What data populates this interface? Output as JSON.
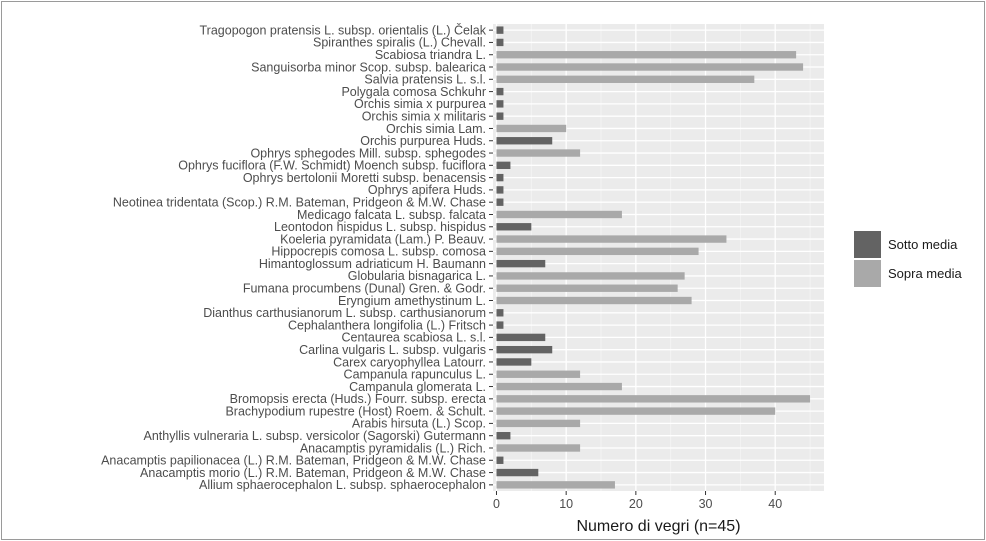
{
  "chart_data": {
    "type": "bar",
    "orientation": "horizontal",
    "xlabel": "Numero di vegri (n=45)",
    "ylabel": "",
    "xlim": [
      -0.5,
      47
    ],
    "xticks": [
      0,
      10,
      20,
      30,
      40
    ],
    "grid": true,
    "legend_position": "right",
    "colors": {
      "panel": "#ebebeb",
      "grid_major": "#ffffff",
      "Sotto media": "#636363",
      "Sopra media": "#a9a9a9"
    },
    "categories": [
      "Tragopogon pratensis L. subsp. orientalis (L.) Čelak",
      "Spiranthes spiralis (L.) Chevall.",
      "Scabiosa triandra L.",
      "Sanguisorba minor Scop. subsp. balearica",
      "Salvia pratensis L. s.l.",
      "Polygala comosa Schkuhr",
      "Orchis simia x purpurea",
      "Orchis simia x militaris",
      "Orchis simia Lam.",
      "Orchis purpurea Huds.",
      "Ophrys sphegodes Mill. subsp. sphegodes",
      "Ophrys fuciflora (F.W. Schmidt) Moench subsp. fuciflora",
      "Ophrys bertolonii Moretti subsp. benacensis",
      "Ophrys apifera Huds.",
      "Neotinea tridentata (Scop.) R.M. Bateman, Pridgeon & M.W. Chase",
      "Medicago falcata L. subsp. falcata",
      "Leontodon hispidus L. subsp. hispidus",
      "Koeleria pyramidata (Lam.) P. Beauv.",
      "Hippocrepis comosa L. subsp. comosa",
      "Himantoglossum adriaticum H. Baumann",
      "Globularia bisnagarica L.",
      "Fumana procumbens (Dunal) Gren. & Godr.",
      "Eryngium amethystinum L.",
      "Dianthus carthusianorum L. subsp. carthusianorum",
      "Cephalanthera longifolia (L.) Fritsch",
      "Centaurea scabiosa L. s.l.",
      "Carlina vulgaris L. subsp. vulgaris",
      "Carex caryophyllea Latourr.",
      "Campanula rapunculus L.",
      "Campanula glomerata L.",
      "Bromopsis erecta (Huds.) Fourr. subsp. erecta",
      "Brachypodium rupestre (Host) Roem. & Schult.",
      "Arabis hirsuta (L.) Scop.",
      "Anthyllis vulneraria L. subsp. versicolor (Sagorski) Gutermann",
      "Anacamptis pyramidalis (L.) Rich.",
      "Anacamptis papilionacea (L.) R.M. Bateman, Pridgeon & M.W. Chase",
      "Anacamptis morio (L.) R.M. Bateman, Pridgeon & M.W. Chase",
      "Allium sphaerocephalon L. subsp. sphaerocephalon"
    ],
    "values": [
      1,
      1,
      43,
      44,
      37,
      1,
      1,
      1,
      10,
      8,
      12,
      2,
      1,
      1,
      1,
      18,
      5,
      33,
      29,
      7,
      27,
      26,
      28,
      1,
      1,
      7,
      8,
      5,
      12,
      18,
      45,
      40,
      12,
      2,
      12,
      1,
      6,
      17
    ],
    "groups": [
      "Sotto media",
      "Sotto media",
      "Sopra media",
      "Sopra media",
      "Sopra media",
      "Sotto media",
      "Sotto media",
      "Sotto media",
      "Sopra media",
      "Sotto media",
      "Sopra media",
      "Sotto media",
      "Sotto media",
      "Sotto media",
      "Sotto media",
      "Sopra media",
      "Sotto media",
      "Sopra media",
      "Sopra media",
      "Sotto media",
      "Sopra media",
      "Sopra media",
      "Sopra media",
      "Sotto media",
      "Sotto media",
      "Sotto media",
      "Sotto media",
      "Sotto media",
      "Sopra media",
      "Sopra media",
      "Sopra media",
      "Sopra media",
      "Sopra media",
      "Sotto media",
      "Sopra media",
      "Sotto media",
      "Sotto media",
      "Sopra media"
    ],
    "legend": [
      "Sotto media",
      "Sopra media"
    ]
  }
}
